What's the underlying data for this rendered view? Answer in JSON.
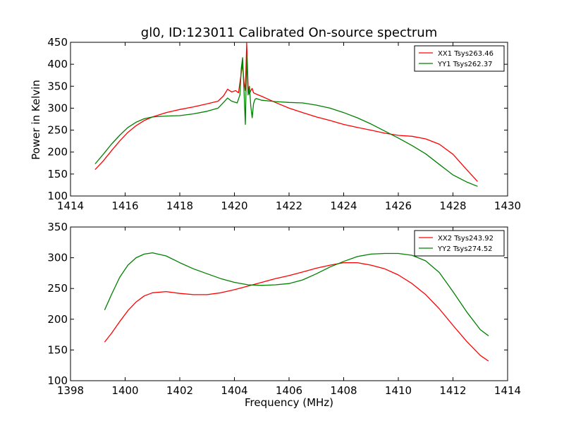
{
  "figure": {
    "title": "gl0, ID:123011 Calibrated On-source spectrum",
    "ylabel": "Power in Kelvin",
    "xlabel": "Frequency (MHz)"
  },
  "chart_data": [
    {
      "type": "line",
      "title": "gl0, ID:123011 Calibrated On-source spectrum",
      "xlabel": "",
      "ylabel": "Power in Kelvin",
      "xlim": [
        1414,
        1430
      ],
      "ylim": [
        100,
        450
      ],
      "xticks": [
        1414,
        1416,
        1418,
        1420,
        1422,
        1424,
        1426,
        1428,
        1430
      ],
      "yticks": [
        100,
        150,
        200,
        250,
        300,
        350,
        400,
        450
      ],
      "grid": false,
      "legend_position": "top-right",
      "series": [
        {
          "name": "XX1 Tsys263.46",
          "color": "#ff0000",
          "x": [
            1414.9,
            1415.2,
            1415.5,
            1415.8,
            1416.1,
            1416.4,
            1416.7,
            1417.0,
            1417.5,
            1418.0,
            1418.5,
            1419.0,
            1419.4,
            1419.6,
            1419.75,
            1419.9,
            1420.05,
            1420.15,
            1420.25,
            1420.3,
            1420.35,
            1420.4,
            1420.45,
            1420.5,
            1420.55,
            1420.6,
            1420.65,
            1420.7,
            1420.8,
            1421.0,
            1421.5,
            1422.0,
            1422.5,
            1423.0,
            1423.5,
            1424.0,
            1424.5,
            1425.0,
            1425.5,
            1426.0,
            1426.5,
            1427.0,
            1427.5,
            1428.0,
            1428.5,
            1428.9
          ],
          "y": [
            160,
            180,
            203,
            225,
            245,
            260,
            272,
            280,
            290,
            297,
            303,
            310,
            316,
            328,
            343,
            337,
            340,
            335,
            380,
            400,
            360,
            340,
            448,
            350,
            332,
            340,
            345,
            335,
            332,
            327,
            313,
            300,
            290,
            280,
            272,
            263,
            256,
            250,
            243,
            238,
            236,
            230,
            218,
            195,
            160,
            133
          ]
        },
        {
          "name": "YY1 Tsys262.37",
          "color": "#008000",
          "x": [
            1414.9,
            1415.2,
            1415.5,
            1415.8,
            1416.1,
            1416.4,
            1416.7,
            1417.0,
            1417.5,
            1418.0,
            1418.5,
            1419.0,
            1419.4,
            1419.6,
            1419.75,
            1419.9,
            1420.1,
            1420.2,
            1420.25,
            1420.3,
            1420.35,
            1420.4,
            1420.45,
            1420.5,
            1420.55,
            1420.6,
            1420.65,
            1420.7,
            1420.75,
            1420.8,
            1421.0,
            1421.5,
            1422.0,
            1422.5,
            1423.0,
            1423.5,
            1424.0,
            1424.5,
            1425.0,
            1425.5,
            1426.0,
            1426.5,
            1427.0,
            1427.5,
            1428.0,
            1428.5,
            1428.9
          ],
          "y": [
            173,
            195,
            218,
            238,
            256,
            268,
            276,
            280,
            282,
            283,
            287,
            293,
            300,
            313,
            323,
            316,
            312,
            330,
            390,
            415,
            340,
            263,
            420,
            330,
            350,
            305,
            278,
            310,
            320,
            322,
            318,
            315,
            313,
            312,
            307,
            300,
            290,
            278,
            264,
            248,
            232,
            215,
            196,
            172,
            148,
            132,
            122
          ]
        }
      ]
    },
    {
      "type": "line",
      "title": "",
      "xlabel": "Frequency (MHz)",
      "ylabel": "",
      "xlim": [
        1398,
        1414
      ],
      "ylim": [
        100,
        350
      ],
      "xticks": [
        1398,
        1400,
        1402,
        1404,
        1406,
        1408,
        1410,
        1412,
        1414
      ],
      "yticks": [
        100,
        150,
        200,
        250,
        300,
        350
      ],
      "grid": false,
      "legend_position": "top-right",
      "series": [
        {
          "name": "XX2 Tsys243.92",
          "color": "#ff0000",
          "x": [
            1399.25,
            1399.5,
            1399.8,
            1400.1,
            1400.4,
            1400.7,
            1401.0,
            1401.5,
            1402.0,
            1402.5,
            1403.0,
            1403.5,
            1404.0,
            1404.5,
            1405.0,
            1405.5,
            1406.0,
            1406.5,
            1407.0,
            1407.5,
            1408.0,
            1408.5,
            1409.0,
            1409.5,
            1410.0,
            1410.5,
            1411.0,
            1411.5,
            1412.0,
            1412.5,
            1413.0,
            1413.3
          ],
          "y": [
            163,
            177,
            196,
            214,
            228,
            238,
            243,
            245,
            242,
            240,
            240,
            243,
            248,
            254,
            260,
            266,
            271,
            277,
            283,
            288,
            292,
            292,
            288,
            282,
            272,
            258,
            240,
            217,
            190,
            164,
            141,
            132
          ]
        },
        {
          "name": "YY2 Tsys274.52",
          "color": "#008000",
          "x": [
            1399.25,
            1399.5,
            1399.8,
            1400.1,
            1400.4,
            1400.7,
            1401.0,
            1401.5,
            1402.0,
            1402.5,
            1403.0,
            1403.5,
            1404.0,
            1404.5,
            1405.0,
            1405.5,
            1406.0,
            1406.5,
            1407.0,
            1407.5,
            1408.0,
            1408.5,
            1409.0,
            1409.5,
            1410.0,
            1410.5,
            1411.0,
            1411.5,
            1412.0,
            1412.5,
            1413.0,
            1413.3
          ],
          "y": [
            215,
            240,
            268,
            288,
            300,
            306,
            308,
            303,
            292,
            282,
            274,
            266,
            260,
            256,
            255,
            256,
            258,
            264,
            274,
            285,
            294,
            302,
            306,
            307,
            307,
            304,
            295,
            276,
            245,
            212,
            183,
            173
          ]
        }
      ]
    }
  ]
}
